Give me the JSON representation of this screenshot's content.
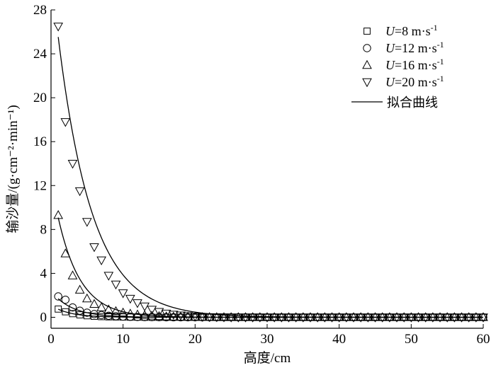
{
  "chart_data": {
    "type": "scatter",
    "xlabel": "高度/cm",
    "ylabel": "输沙量/(g·cm⁻²·min⁻¹)",
    "xlim": [
      0,
      60
    ],
    "ylim": [
      -1,
      28
    ],
    "xticks": [
      0,
      10,
      20,
      30,
      40,
      50,
      60
    ],
    "yticks": [
      0,
      4,
      8,
      12,
      16,
      20,
      24,
      28
    ],
    "legend_position": "top-right",
    "fit_label": "拟合曲线",
    "series": [
      {
        "name": "U=8 m·s⁻¹",
        "legend_main": "=8 m·s",
        "legend_sup": "-1",
        "marker": "square",
        "x": [
          1,
          2,
          3,
          4,
          5,
          6,
          7,
          8,
          9,
          10,
          11,
          12,
          13,
          14,
          15,
          16,
          17,
          18,
          19,
          20,
          21,
          22,
          23,
          24,
          25,
          26,
          27,
          28,
          29,
          30,
          31,
          32,
          33,
          34,
          35,
          36,
          37,
          38,
          39,
          40,
          41,
          42,
          43,
          44,
          45,
          46,
          47,
          48,
          49,
          50,
          51,
          52,
          53,
          54,
          55,
          56,
          57,
          58,
          59,
          60
        ],
        "y": [
          0.75,
          0.5,
          0.33,
          0.22,
          0.14,
          0.09,
          0.06,
          0.04,
          0.03,
          0.02,
          0.01,
          0.01,
          0,
          0,
          0,
          0,
          0,
          0,
          0,
          0,
          0,
          0,
          0,
          0,
          0,
          0,
          0,
          0,
          0,
          0,
          0,
          0,
          0,
          0,
          0,
          0,
          0,
          0,
          0,
          0,
          0,
          0,
          0,
          0,
          0,
          0,
          0,
          0,
          0,
          0,
          0,
          0,
          0,
          0,
          0,
          0,
          0,
          0,
          0,
          0
        ],
        "fit": {
          "a": 1.1,
          "b": 0.4
        }
      },
      {
        "name": "U=12 m·s⁻¹",
        "legend_main": "=12 m·s",
        "legend_sup": "-1",
        "marker": "circle",
        "x": [
          1,
          2,
          3,
          4,
          5,
          6,
          7,
          8,
          9,
          10,
          11,
          12,
          13,
          14,
          15,
          16,
          17,
          18,
          19,
          20,
          21,
          22,
          23,
          24,
          25,
          26,
          27,
          28,
          29,
          30,
          31,
          32,
          33,
          34,
          35,
          36,
          37,
          38,
          39,
          40,
          41,
          42,
          43,
          44,
          45,
          46,
          47,
          48,
          49,
          50,
          51,
          52,
          53,
          54,
          55,
          56,
          57,
          58,
          59,
          60
        ],
        "y": [
          1.9,
          1.6,
          0.9,
          0.6,
          0.42,
          0.29,
          0.2,
          0.14,
          0.1,
          0.07,
          0.05,
          0.03,
          0.02,
          0.02,
          0.01,
          0,
          0,
          0,
          0,
          0,
          0,
          0,
          0,
          0,
          0,
          0,
          0,
          0,
          0,
          0,
          0,
          0,
          0,
          0,
          0,
          0,
          0,
          0,
          0,
          0,
          0,
          0,
          0,
          0,
          0,
          0,
          0,
          0,
          0,
          0,
          0,
          0,
          0,
          0,
          0,
          0,
          0,
          0,
          0,
          0
        ],
        "fit": {
          "a": 2.4,
          "b": 0.35
        }
      },
      {
        "name": "U=16 m·s⁻¹",
        "legend_main": "=16 m·s",
        "legend_sup": "-1",
        "marker": "triangle-up",
        "x": [
          1,
          2,
          3,
          4,
          5,
          6,
          7,
          8,
          9,
          10,
          11,
          12,
          13,
          14,
          15,
          16,
          17,
          18,
          19,
          20,
          21,
          22,
          23,
          24,
          25,
          26,
          27,
          28,
          29,
          30,
          31,
          32,
          33,
          34,
          35,
          36,
          37,
          38,
          39,
          40,
          41,
          42,
          43,
          44,
          45,
          46,
          47,
          48,
          49,
          50,
          51,
          52,
          53,
          54,
          55,
          56,
          57,
          58,
          59,
          60
        ],
        "y": [
          9.3,
          5.8,
          3.8,
          2.5,
          1.7,
          1.2,
          0.9,
          0.7,
          0.55,
          0.42,
          0.32,
          0.24,
          0.18,
          0.14,
          0.1,
          0.07,
          0.05,
          0.04,
          0.03,
          0.02,
          0.01,
          0.01,
          0,
          0,
          0,
          0,
          0,
          0,
          0,
          0,
          0,
          0,
          0,
          0,
          0,
          0,
          0,
          0,
          0,
          0,
          0,
          0,
          0,
          0,
          0,
          0,
          0,
          0,
          0,
          0,
          0,
          0,
          0,
          0,
          0,
          0,
          0,
          0,
          0,
          0
        ],
        "fit": {
          "a": 12.5,
          "b": 0.32
        }
      },
      {
        "name": "U=20 m·s⁻¹",
        "legend_main": "=20 m·s",
        "legend_sup": "-1",
        "marker": "triangle-down",
        "x": [
          1,
          2,
          3,
          4,
          5,
          6,
          7,
          8,
          9,
          10,
          11,
          12,
          13,
          14,
          15,
          16,
          17,
          18,
          19,
          20,
          21,
          22,
          23,
          24,
          25,
          26,
          27,
          28,
          29,
          30,
          31,
          32,
          33,
          34,
          35,
          36,
          37,
          38,
          39,
          40,
          41,
          42,
          43,
          44,
          45,
          46,
          47,
          48,
          49,
          50,
          51,
          52,
          53,
          54,
          55,
          56,
          57,
          58,
          59,
          60
        ],
        "y": [
          26.5,
          17.8,
          14,
          11.5,
          8.7,
          6.4,
          5.2,
          3.8,
          3,
          2.2,
          1.7,
          1.3,
          1.0,
          0.7,
          0.5,
          0.35,
          0.25,
          0.18,
          0.12,
          0.08,
          0.05,
          0.03,
          0.02,
          0.01,
          0,
          0,
          0,
          0,
          0,
          0,
          0,
          0,
          0,
          0,
          0,
          0,
          0,
          0,
          0,
          0,
          0,
          0,
          0,
          0,
          0,
          0,
          0,
          0,
          0,
          0,
          0,
          0,
          0,
          0,
          0,
          0,
          0,
          0,
          0,
          0
        ],
        "fit": {
          "a": 31.5,
          "b": 0.21
        }
      }
    ]
  }
}
